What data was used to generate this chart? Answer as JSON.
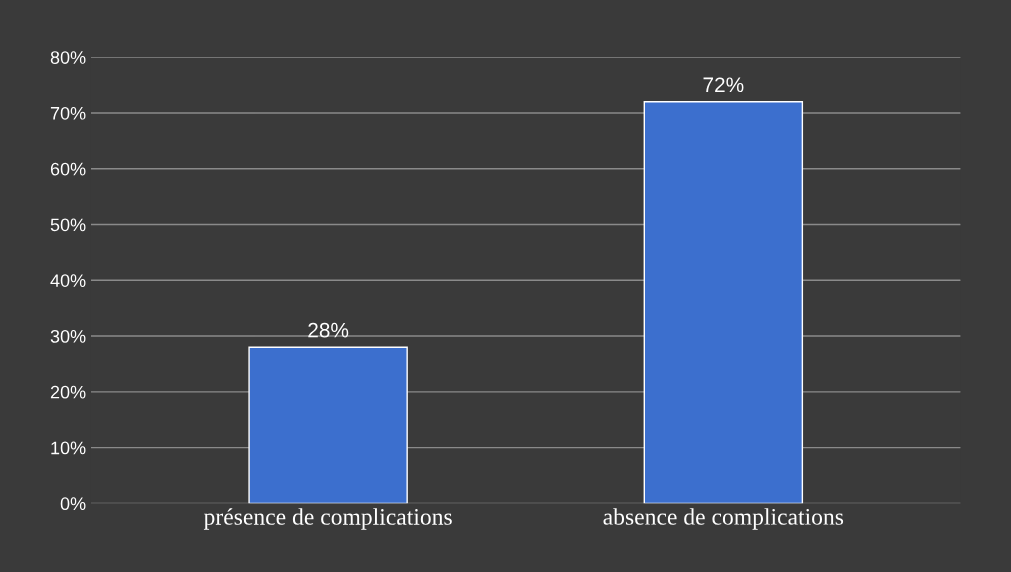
{
  "chart_data": {
    "type": "bar",
    "categories": [
      "présence de complications",
      "absence de complications"
    ],
    "values": [
      28,
      72
    ],
    "color": "#3c6fce",
    "value_labels": [
      "28%",
      "72%"
    ],
    "ylim": [
      0,
      80
    ],
    "yticks": [
      {
        "value": 0,
        "label": "0%"
      },
      {
        "value": 10,
        "label": "10%"
      },
      {
        "value": 20,
        "label": "20%"
      },
      {
        "value": 30,
        "label": "30%"
      },
      {
        "value": 40,
        "label": "40%"
      },
      {
        "value": 50,
        "label": "50%"
      },
      {
        "value": 60,
        "label": "60%"
      },
      {
        "value": 70,
        "label": "70%"
      },
      {
        "value": 80,
        "label": "80%"
      }
    ],
    "grid": "y",
    "legend": false
  }
}
